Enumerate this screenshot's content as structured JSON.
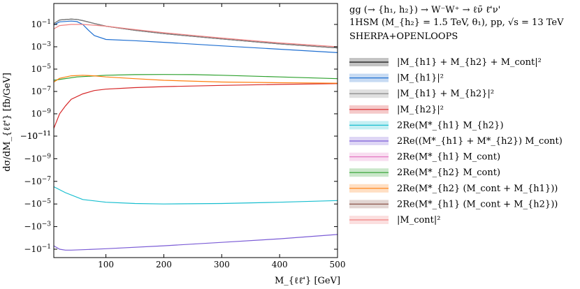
{
  "chart_data": {
    "type": "line",
    "xlabel": "M_{ℓℓ̄'} [GeV]",
    "ylabel": "dσ/dM_{ℓℓ̄'} [fb/GeV]",
    "xlim": [
      10,
      500
    ],
    "y_scale": "symlog",
    "xticks": [
      100,
      200,
      300,
      400,
      500
    ],
    "ytick_labels": [
      "10^{-1}",
      "10^{-3}",
      "10^{-5}",
      "10^{-7}",
      "10^{-9}",
      "10^{-11}",
      "−10^{-11}",
      "−10^{-9}",
      "−10^{-7}",
      "−10^{-5}",
      "−10^{-3}",
      "−10^{-1}"
    ],
    "header": {
      "process": "gg (→ {h₁, h₂}) → W⁻W⁺ → ℓν̄ ℓ̄'ν'",
      "model": "1HSM (M_{h₂} = 1.5 TeV, θ₁), pp, √s = 13 TeV",
      "tool": "SHERPA+OPENLOOPS"
    },
    "series": [
      {
        "name": "|M_{h1} + M_{h2} + M_cont|²",
        "color": "#111111",
        "x": [
          10,
          20,
          40,
          50,
          60,
          80,
          100,
          150,
          200,
          300,
          400,
          500
        ],
        "y": [
          0.12,
          0.25,
          0.3,
          0.28,
          0.22,
          0.12,
          0.07,
          0.03,
          0.015,
          0.005,
          0.0018,
          0.0008
        ]
      },
      {
        "name": "|M_{h1}|²",
        "color": "#1f6fd1",
        "x": [
          10,
          20,
          40,
          50,
          60,
          70,
          80,
          100,
          150,
          200,
          300,
          400,
          500
        ],
        "y": [
          0.09,
          0.17,
          0.2,
          0.18,
          0.1,
          0.03,
          0.01,
          0.0045,
          0.0035,
          0.0025,
          0.0012,
          0.0006,
          0.0003
        ]
      },
      {
        "name": "|M_{h1} + M_{h2}|²",
        "color": "#7f7f7f",
        "x": [
          10,
          20,
          40,
          50,
          60,
          80,
          100,
          150,
          200,
          300,
          400,
          500
        ],
        "y": [
          0.12,
          0.25,
          0.3,
          0.28,
          0.22,
          0.12,
          0.07,
          0.03,
          0.015,
          0.005,
          0.0018,
          0.0008
        ]
      },
      {
        "name": "|M_{h2}|²",
        "color": "#d62728",
        "x": [
          10,
          20,
          30,
          40,
          60,
          80,
          100,
          150,
          200,
          300,
          400,
          500
        ],
        "y": [
          5e-11,
          1e-09,
          5e-09,
          2e-08,
          6e-08,
          1.2e-07,
          1.6e-07,
          2.2e-07,
          2.7e-07,
          3.5e-07,
          4.3e-07,
          5e-07
        ]
      },
      {
        "name": "2Re(M*_{h1} M_{h2})",
        "color": "#17becf",
        "x": [
          10,
          30,
          60,
          100,
          150,
          200,
          300,
          400,
          500
        ],
        "y": [
          -3e-07,
          -1e-06,
          -4e-06,
          -7e-06,
          -9e-06,
          -1e-05,
          -9e-06,
          -7e-06,
          -5e-06
        ]
      },
      {
        "name": "2Re((M*_{h1} + M*_{h2}) M_cont)",
        "color": "#7b5cd6",
        "x": [
          10,
          20,
          30,
          40,
          60,
          100,
          200,
          300,
          400,
          500
        ],
        "y": [
          -0.05,
          -0.1,
          -0.12,
          -0.12,
          -0.11,
          -0.09,
          -0.05,
          -0.025,
          -0.012,
          -0.005
        ]
      },
      {
        "name": "2Re(M*_{h1} M_cont)",
        "color": "#e377c2",
        "x": [],
        "y": []
      },
      {
        "name": "2Re(M*_{h2} M_cont)",
        "color": "#2ca02c",
        "x": [
          10,
          50,
          100,
          150,
          200,
          250,
          300,
          400,
          500
        ],
        "y": [
          1e-06,
          2e-06,
          2.8e-06,
          3.2e-06,
          3.3e-06,
          3.2e-06,
          2.8e-06,
          2e-06,
          1.4e-06
        ]
      },
      {
        "name": "2Re(M*_{h2} (M_cont + M_{h1}))",
        "color": "#ff7f0e",
        "x": [
          10,
          20,
          40,
          60,
          80,
          100,
          150,
          200,
          300,
          400,
          500
        ],
        "y": [
          7e-07,
          1.5e-06,
          2.5e-06,
          2.8e-06,
          2.5e-06,
          2e-06,
          1.4e-06,
          1e-06,
          7e-07,
          6e-07,
          5.5e-07
        ]
      },
      {
        "name": "2Re(M*_{h1} (M_cont + M_{h2}))",
        "color": "#8c564b",
        "x": [],
        "y": []
      },
      {
        "name": "|M_cont|²",
        "color": "#f08080",
        "x": [
          10,
          20,
          40,
          60,
          80,
          100,
          150,
          200,
          300,
          400,
          500
        ],
        "y": [
          0.04,
          0.08,
          0.1,
          0.1,
          0.085,
          0.07,
          0.035,
          0.018,
          0.006,
          0.0022,
          0.001
        ]
      }
    ]
  }
}
